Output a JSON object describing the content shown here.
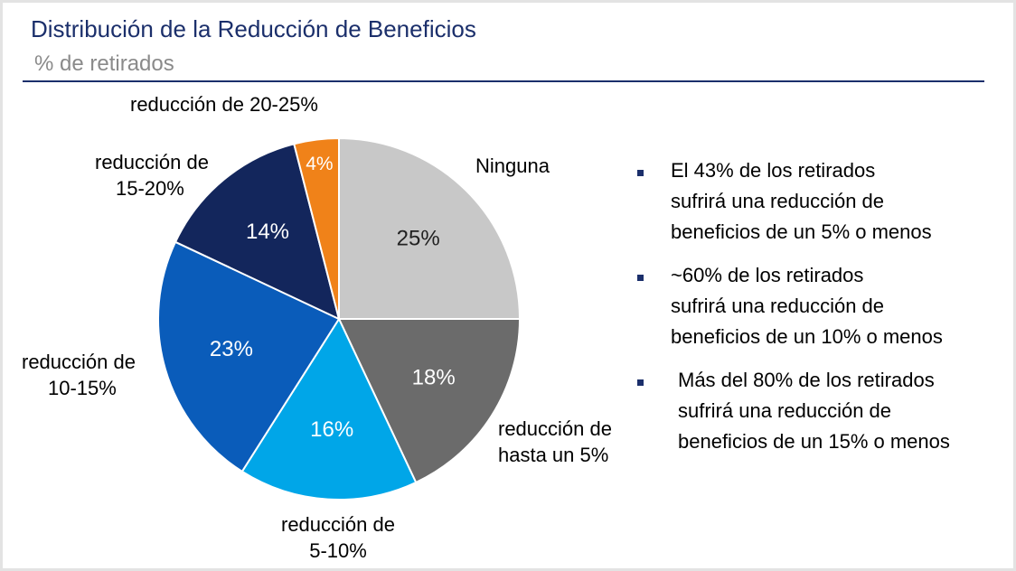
{
  "header": {
    "title": "Distribución de la Reducción de Beneficios",
    "subtitle": "% de retirados"
  },
  "chart_data": {
    "type": "pie",
    "title": "Distribución de la Reducción de Beneficios",
    "subtitle": "% de retirados",
    "slices": [
      {
        "label": "Ninguna",
        "value": 25,
        "value_label": "25%",
        "color": "#c8c8c8",
        "value_color": "#222222"
      },
      {
        "label": "reducción de hasta un 5%",
        "value": 18,
        "value_label": "18%",
        "color": "#6b6b6b",
        "value_color": "#ffffff"
      },
      {
        "label": "reducción de 5-10%",
        "value": 16,
        "value_label": "16%",
        "color": "#00a6e8",
        "value_color": "#ffffff"
      },
      {
        "label": "reducción de 10-15%",
        "value": 23,
        "value_label": "23%",
        "color": "#0a5cba",
        "value_color": "#ffffff"
      },
      {
        "label": "reducción de 15-20%",
        "value": 14,
        "value_label": "14%",
        "color": "#13265c",
        "value_color": "#ffffff"
      },
      {
        "label": "reducción de 20-25%",
        "value": 4,
        "value_label": "4%",
        "color": "#f08219",
        "value_color": "#ffffff"
      }
    ]
  },
  "labels": {
    "ninguna": "Ninguna",
    "hasta5_line1": "reducción de",
    "hasta5_line2": "hasta un 5%",
    "r5_10_line1": "reducción de",
    "r5_10_line2": "5-10%",
    "r10_15_line1": "reducción de",
    "r10_15_line2": "10-15%",
    "r15_20_line1": "reducción de",
    "r15_20_line2": "15-20%",
    "r20_25": "reducción de 20-25%"
  },
  "bullets": [
    "El 43% de los retirados\nsufrirá una reducción de\nbeneficios de un 5% o menos",
    "~60% de los retirados\nsufrirá una reducción de\nbeneficios de un 10% o menos",
    "Más del 80% de los retirados\nsufrirá una reducción de\nbeneficios de un 15% o menos"
  ],
  "colors": {
    "accent": "#1b2f6b",
    "subtitle": "#8a8a8a"
  }
}
